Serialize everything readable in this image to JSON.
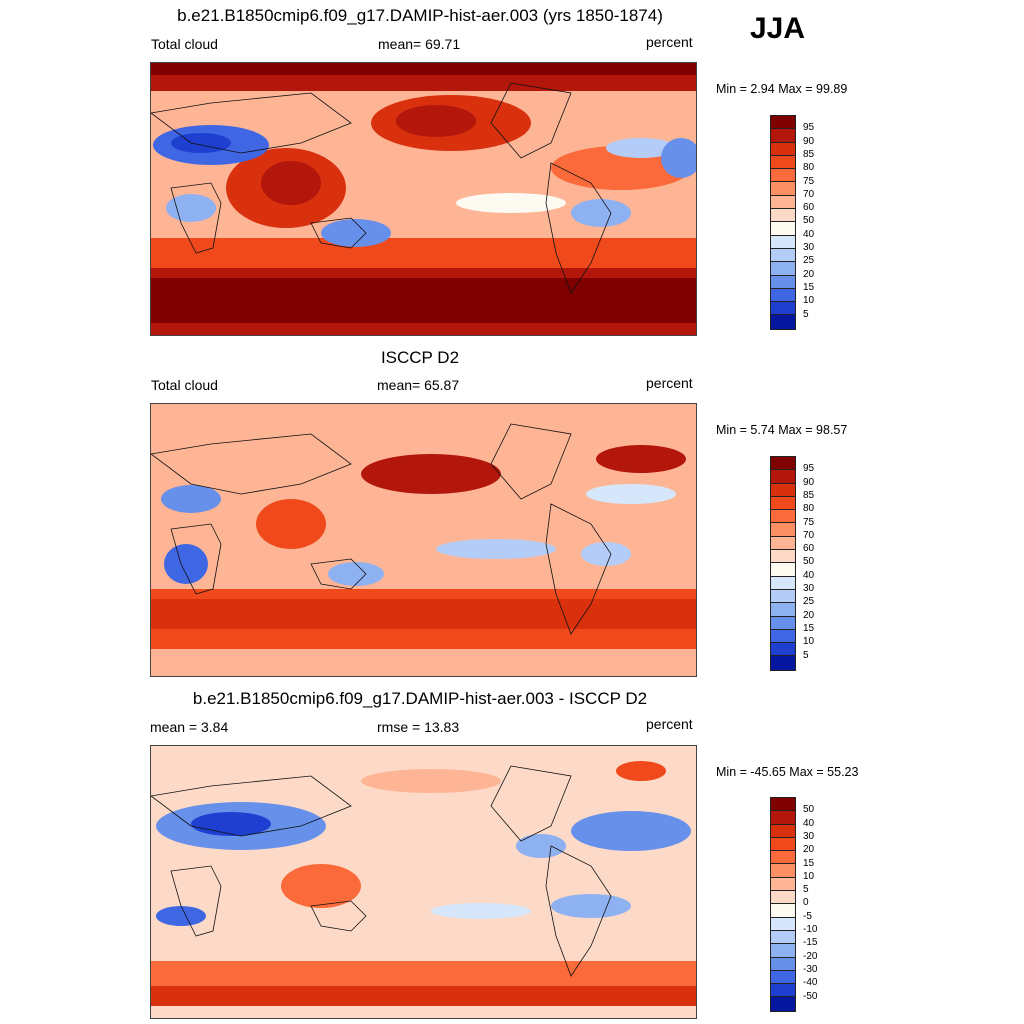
{
  "season": "JJA",
  "panels": [
    {
      "title": "b.e21.B1850cmip6.f09_g17.DAMIP-hist-aer.003 (yrs 1850-1874)",
      "left_label": "Total cloud",
      "mid_label": "mean=  69.71",
      "right_label": "percent",
      "minmax": "Min =   2.94 Max =  99.89",
      "colorbar_labels": [
        "95",
        "90",
        "85",
        "80",
        "75",
        "70",
        "60",
        "50",
        "40",
        "30",
        "25",
        "20",
        "15",
        "10",
        "5"
      ],
      "colorbar_colors": [
        "#7f0000",
        "#b3170c",
        "#d9300e",
        "#f04a1c",
        "#fa6a3a",
        "#fc8f64",
        "#fdb595",
        "#fddac8",
        "#fdfaf2",
        "#d6e6fb",
        "#b4cdf8",
        "#8eb1f2",
        "#6690ea",
        "#3f66e3",
        "#1f3fd1",
        "#06169e"
      ]
    },
    {
      "title": "ISCCP D2",
      "left_label": "Total cloud",
      "mid_label": "mean=  65.87",
      "right_label": "percent",
      "minmax": "Min =   5.74 Max =  98.57",
      "colorbar_labels": [
        "95",
        "90",
        "85",
        "80",
        "75",
        "70",
        "60",
        "50",
        "40",
        "30",
        "25",
        "20",
        "15",
        "10",
        "5"
      ],
      "colorbar_colors": [
        "#7f0000",
        "#b3170c",
        "#d9300e",
        "#f04a1c",
        "#fa6a3a",
        "#fc8f64",
        "#fdb595",
        "#fddac8",
        "#fdfaf2",
        "#d6e6fb",
        "#b4cdf8",
        "#8eb1f2",
        "#6690ea",
        "#3f66e3",
        "#1f3fd1",
        "#06169e"
      ]
    },
    {
      "title": "b.e21.B1850cmip6.f09_g17.DAMIP-hist-aer.003 - ISCCP D2",
      "left_label": "mean =   3.84",
      "mid_label": "rmse =  13.83",
      "right_label": "percent",
      "minmax": "Min = -45.65 Max =  55.23",
      "colorbar_labels": [
        "50",
        "40",
        "30",
        "20",
        "15",
        "10",
        "5",
        "0",
        "-5",
        "-10",
        "-15",
        "-20",
        "-30",
        "-40",
        "-50"
      ],
      "colorbar_colors": [
        "#7f0000",
        "#b3170c",
        "#d9300e",
        "#f04a1c",
        "#fa6a3a",
        "#fc8f64",
        "#fdb595",
        "#fddac8",
        "#fdfaf2",
        "#d6e6fb",
        "#b4cdf8",
        "#8eb1f2",
        "#6690ea",
        "#3f66e3",
        "#1f3fd1",
        "#06169e"
      ]
    }
  ]
}
